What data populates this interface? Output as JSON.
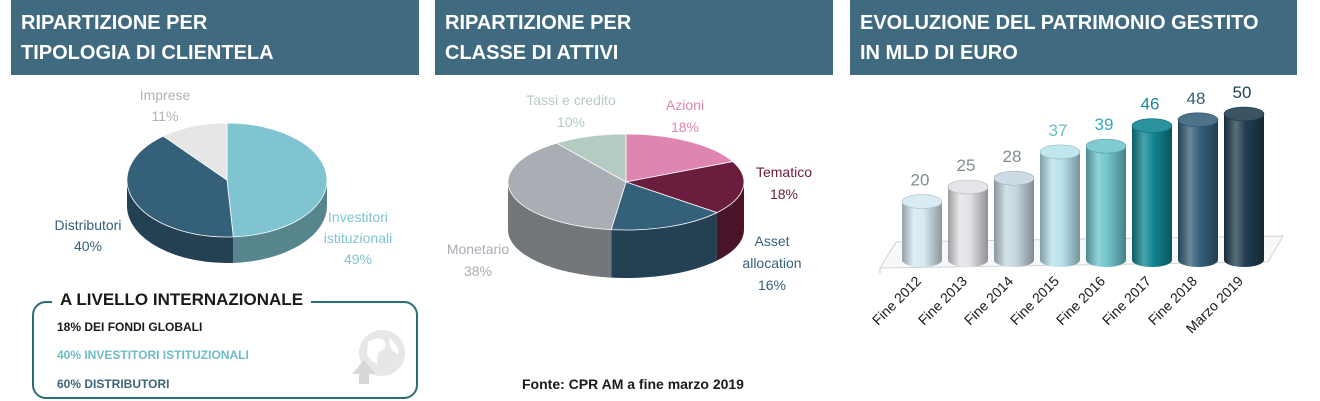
{
  "panels": [
    {
      "title_line1": "RIPARTIZIONE PER",
      "title_line2": "TIPOLOGIA DI CLIENTELA"
    },
    {
      "title_line1": "RIPARTIZIONE PER",
      "title_line2": "CLASSE DI ATTIVI"
    },
    {
      "title_line1": "EVOLUZIONE DEL PATRIMONIO GESTITO",
      "title_line2": "IN MLD DI EURO"
    }
  ],
  "international": {
    "title": "A LIVELLO INTERNAZIONALE",
    "line1": "18% DEI FONDI GLOBALI",
    "line2": "40% INVESTITORI ISTITUZIONALI",
    "line3": "60% DISTRIBUTORI",
    "icon": "globe-arrow-icon",
    "colors": {
      "line1": "#1a1a1a",
      "line2": "#6cbcc8",
      "line3": "#3d6578"
    }
  },
  "source": "Fonte: CPR AM a fine marzo 2019",
  "chart_data": [
    {
      "type": "pie",
      "title": "RIPARTIZIONE PER TIPOLOGIA DI CLIENTELA",
      "slices": [
        {
          "label": "Investitori istituzionali",
          "value": 49,
          "display": "49%",
          "color": "#7fc4d0"
        },
        {
          "label": "Distributori",
          "value": 40,
          "display": "40%",
          "color": "#35607a"
        },
        {
          "label": "Imprese",
          "value": 11,
          "display": "11%",
          "color": "#e6e6e6"
        }
      ]
    },
    {
      "type": "pie",
      "title": "RIPARTIZIONE PER CLASSE DI ATTIVI",
      "slices": [
        {
          "label": "Azioni",
          "value": 18,
          "display": "18%",
          "color": "#de85b1"
        },
        {
          "label": "Tematico",
          "value": 18,
          "display": "18%",
          "color": "#6b1d3e"
        },
        {
          "label": "Asset allocation",
          "value": 16,
          "display": "16%",
          "color": "#35607a"
        },
        {
          "label": "Monetario",
          "value": 38,
          "display": "38%",
          "color": "#a9adb4"
        },
        {
          "label": "Tassi e credito",
          "value": 10,
          "display": "10%",
          "color": "#b4cbc2"
        }
      ]
    },
    {
      "type": "bar",
      "title": "EVOLUZIONE DEL PATRIMONIO GESTITO IN MLD DI EURO",
      "categories": [
        "Fine 2012",
        "Fine 2013",
        "Fine 2014",
        "Fine 2015",
        "Fine 2016",
        "Fine 2017",
        "Fine 2018",
        "Marzo 2019"
      ],
      "values": [
        20,
        25,
        28,
        37,
        39,
        46,
        48,
        50
      ],
      "colors": [
        "#d4e9f1",
        "#dfe1e5",
        "#c5d6e0",
        "#b6e2ea",
        "#6fc4cc",
        "#0f8390",
        "#35607a",
        "#203d4f"
      ],
      "label_colors": [
        "#7f8c94",
        "#7f8c94",
        "#7f8c94",
        "#6cbcc8",
        "#35a8b8",
        "#168896",
        "#35607a",
        "#243f50"
      ]
    }
  ]
}
